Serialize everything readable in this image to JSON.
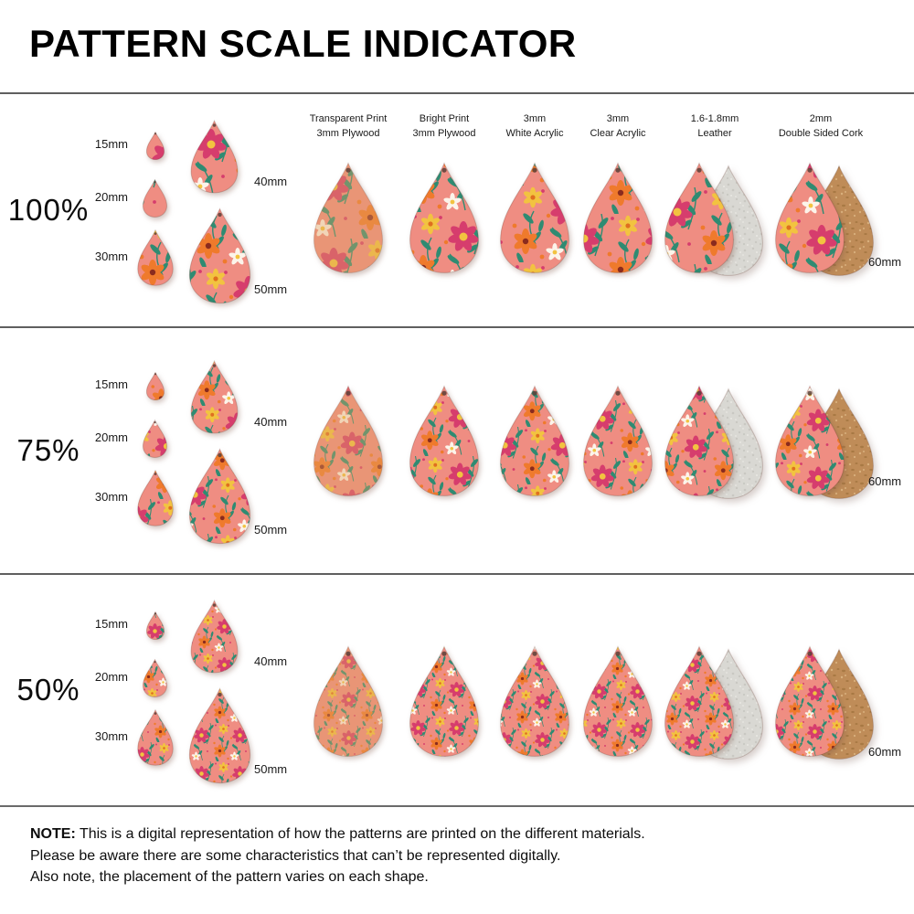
{
  "title": "PATTERN SCALE INDICATOR",
  "rows": [
    {
      "scale_label": "100%",
      "pattern_scale": 1
    },
    {
      "scale_label": "75%",
      "pattern_scale": 0.75
    },
    {
      "scale_label": "50%",
      "pattern_scale": 0.5
    }
  ],
  "sizes": {
    "left": [
      {
        "label": "15mm",
        "mm": 15
      },
      {
        "label": "20mm",
        "mm": 20
      },
      {
        "label": "30mm",
        "mm": 30
      }
    ],
    "right": [
      {
        "label": "40mm",
        "mm": 40
      },
      {
        "label": "50mm",
        "mm": 50
      }
    ],
    "main_label": "60mm"
  },
  "materials": [
    {
      "line1": "Transparent Print",
      "line2": "3mm Plywood",
      "finish": "transparent"
    },
    {
      "line1": "Bright Print",
      "line2": "3mm Plywood",
      "finish": "bright"
    },
    {
      "line1": "3mm",
      "line2": "White Acrylic",
      "finish": "bright"
    },
    {
      "line1": "3mm",
      "line2": "Clear Acrylic",
      "finish": "bright"
    },
    {
      "line1": "1.6-1.8mm",
      "line2": "Leather",
      "finish": "leather-backed"
    },
    {
      "line1": "2mm",
      "line2": "Double Sided Cork",
      "finish": "cork-backed"
    }
  ],
  "note": {
    "bold": "NOTE:",
    "line1": " This is a digital representation of how the patterns are printed on the different materials.",
    "line2": "Please be aware there are some characteristics that can’t be represented digitally.",
    "line3": "Also note, the placement of the pattern varies on each shape."
  },
  "colors": {
    "pattern_background": "#ef8d82",
    "flower_pink": "#d63d6d",
    "flower_orange": "#ef7a2c",
    "flower_yellow": "#f2c340",
    "flower_white": "#fcf4ea",
    "leaf_teal": "#2f8b72",
    "plywood_tint": "#dfa263",
    "suede_gray": "#d9d8d3",
    "cork_tan": "#bf8c58",
    "divider": "#5f5f5f",
    "hole": "#5a4038"
  }
}
